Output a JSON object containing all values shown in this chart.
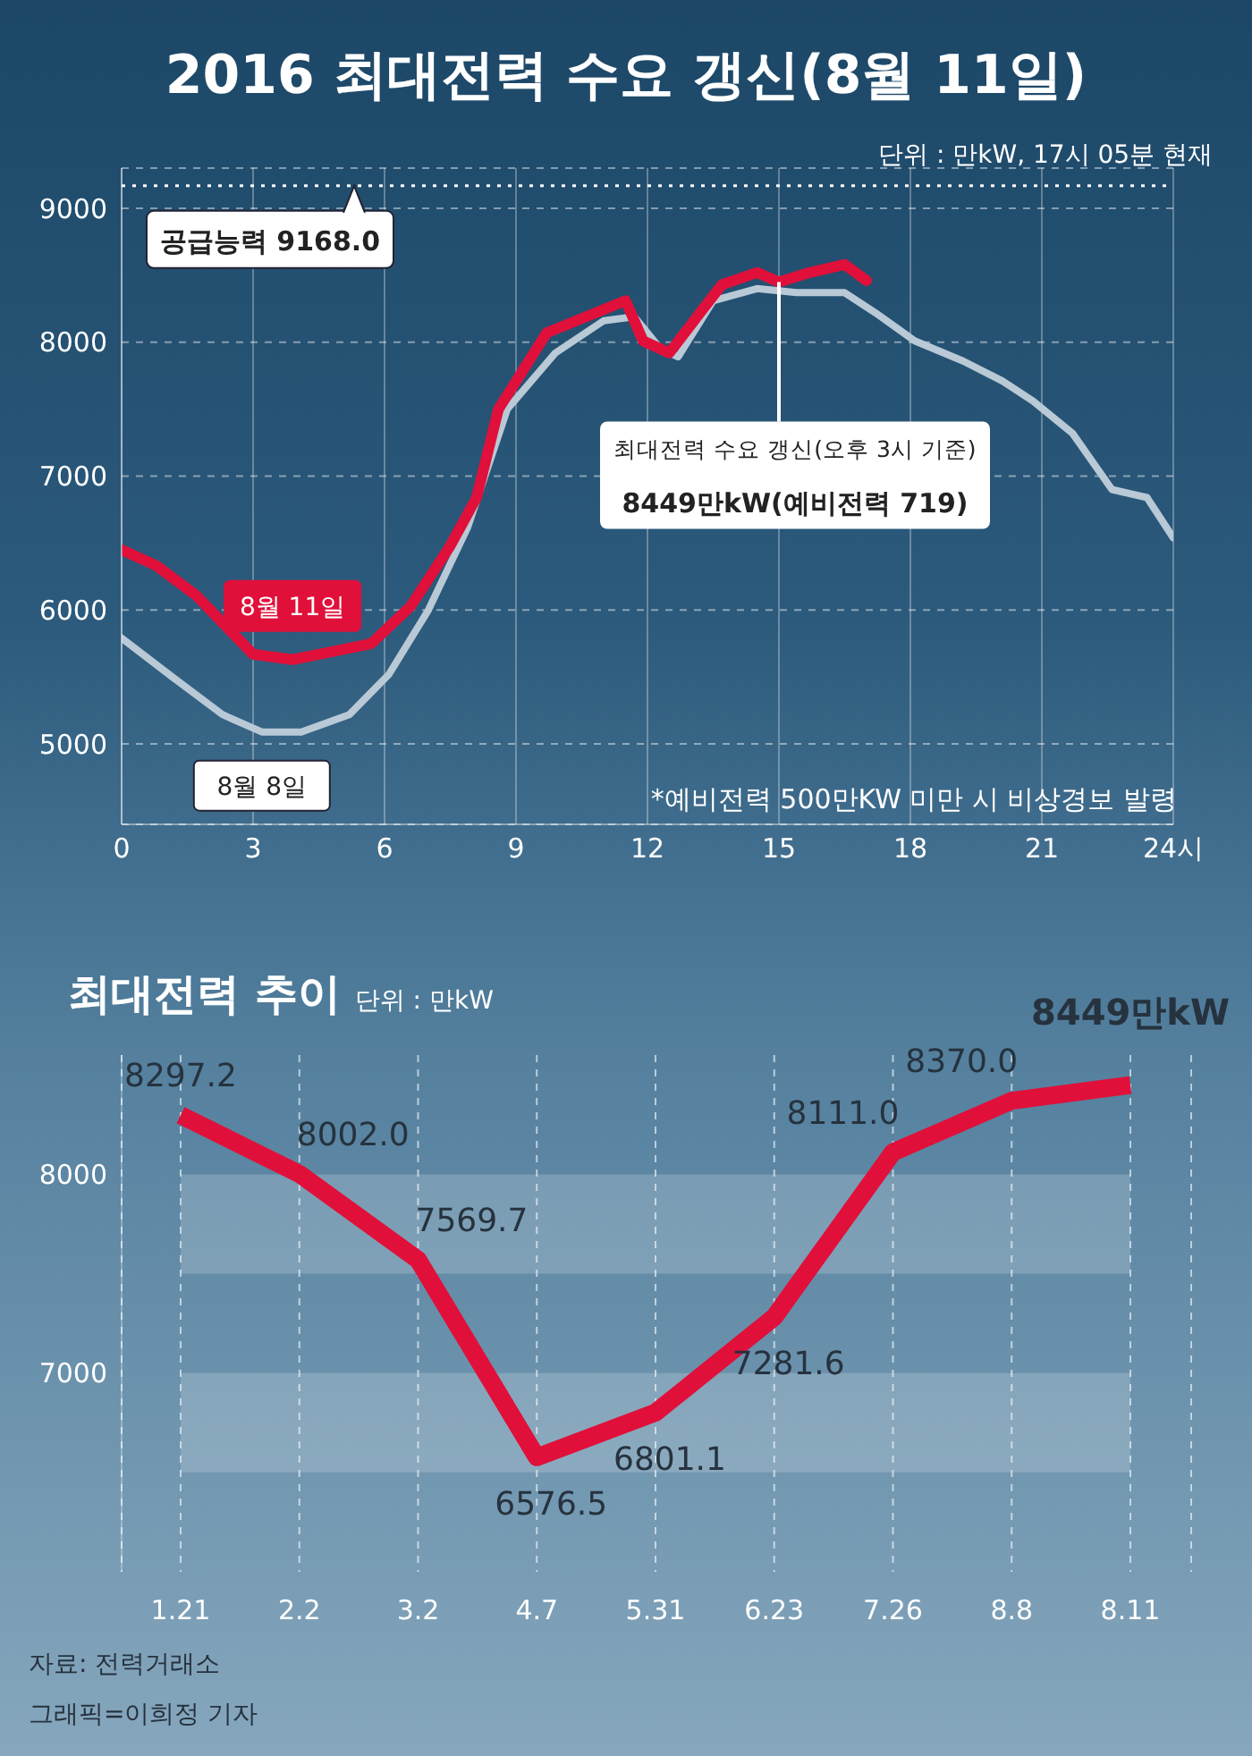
{
  "chart_data": [
    {
      "type": "line",
      "title": "2016 최대전력 수요 갱신(8월 11일)",
      "subtitle": "단위 : 만kW, 17시 05분 현재",
      "xlim": [
        0,
        24
      ],
      "ylim": [
        4400,
        9300
      ],
      "xticks": [
        0,
        3,
        6,
        9,
        12,
        15,
        18,
        21,
        {
          "value": 24,
          "label": "24시"
        }
      ],
      "yticks": [
        5000,
        6000,
        7000,
        8000,
        9000
      ],
      "grid": true,
      "series": [
        {
          "name": "8월 8일",
          "color": "#b9c9d6",
          "x": [
            0,
            1.2,
            2.3,
            3.2,
            4.1,
            5.2,
            6.1,
            7.0,
            7.9,
            8.8,
            9.9,
            11.0,
            11.7,
            12.3,
            12.7,
            13.5,
            14.5,
            15.4,
            16.5,
            17.2,
            18.1,
            19.2,
            20.1,
            20.8,
            21.7,
            22.6,
            23.4,
            24
          ],
          "values": [
            5790,
            5490,
            5220,
            5090,
            5090,
            5220,
            5520,
            6000,
            6620,
            7500,
            7920,
            8160,
            8190,
            7950,
            7890,
            8310,
            8400,
            8370,
            8370,
            8220,
            8010,
            7860,
            7710,
            7560,
            7320,
            6900,
            6840,
            6540
          ]
        },
        {
          "name": "8월 11일",
          "color": "#e0103a",
          "x": [
            0,
            0.8,
            1.7,
            3.0,
            3.9,
            4.8,
            5.7,
            6.6,
            7.5,
            8.1,
            8.6,
            9.7,
            10.6,
            11.5,
            11.9,
            12.5,
            13.2,
            13.7,
            14.5,
            15.0,
            15.7,
            16.5,
            17.0
          ],
          "values": [
            6450,
            6330,
            6110,
            5670,
            5630,
            5690,
            5750,
            6030,
            6480,
            6840,
            7500,
            8070,
            8190,
            8310,
            8010,
            7920,
            8220,
            8430,
            8520,
            8449,
            8520,
            8580,
            8460
          ]
        }
      ],
      "ref_lines": [
        {
          "axis": "y",
          "value": 9168,
          "label": "공급능력 9168.0",
          "color": "#ffffff",
          "line_style": "dotted"
        }
      ],
      "annotations": [
        {
          "text": "최대전력 수요 갱신(오후 3시 기준)",
          "x": 15,
          "y": 8449
        },
        "8449만kW(예비전력 719)",
        "*예비전력 500만KW 미만 시 비상경보 발령"
      ]
    },
    {
      "type": "line",
      "title": "최대전력 추이",
      "subtitle": "단위 : 만kW",
      "categories": [
        "1.21",
        "2.2",
        "3.2",
        "4.7",
        "5.31",
        "6.23",
        "7.26",
        "8.8",
        "8.11"
      ],
      "ylim": [
        6000,
        8600
      ],
      "yticks": [
        7000,
        8000
      ],
      "grid": "x",
      "series": [
        {
          "color": "#e0103a",
          "values": [
            8297.2,
            8002.0,
            7569.7,
            6576.5,
            6801.1,
            7281.6,
            8111.0,
            8370.0,
            8449
          ],
          "value_labels": [
            "8297.2",
            "8002.0",
            "7569.7",
            "6576.5",
            "6801.1",
            "7281.6",
            "8111.0",
            "8370.0",
            "8449만kW"
          ]
        }
      ],
      "bands": [
        {
          "axis": "y",
          "from": 7500,
          "to": 8000,
          "color": "#ffffff"
        },
        {
          "axis": "y",
          "from": 6500,
          "to": 7000,
          "color": "#ffffff"
        }
      ],
      "annotations": [
        "자료: 전력거래소",
        "그래픽=이희정 기자"
      ]
    }
  ]
}
